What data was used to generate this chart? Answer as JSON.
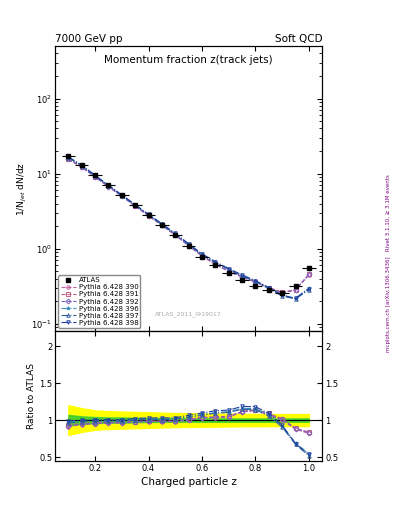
{
  "title_top_left": "7000 GeV pp",
  "title_top_right": "Soft QCD",
  "plot_title": "Momentum fraction z(track jets)",
  "ylabel_main": "1/N$_{jet}$ dN/dz",
  "ylabel_ratio": "Ratio to ATLAS",
  "xlabel": "Charged particle z",
  "right_label": "Rivet 3.1.10, ≥ 3.1M events",
  "right_label2": "mcplots.cern.ch [arXiv:1306.3436]",
  "watermark": "ATLAS_2011_I919017",
  "ylim_main": [
    0.08,
    500
  ],
  "ylim_ratio": [
    0.45,
    2.2
  ],
  "xlim": [
    0.05,
    1.05
  ],
  "z_data": [
    0.1,
    0.15,
    0.2,
    0.25,
    0.3,
    0.35,
    0.4,
    0.45,
    0.5,
    0.55,
    0.6,
    0.65,
    0.7,
    0.75,
    0.8,
    0.85,
    0.9,
    0.95,
    1.0
  ],
  "atlas_y": [
    17.0,
    13.0,
    9.5,
    7.0,
    5.2,
    3.8,
    2.8,
    2.1,
    1.55,
    1.1,
    0.78,
    0.6,
    0.48,
    0.38,
    0.32,
    0.28,
    0.26,
    0.32,
    0.55
  ],
  "atlas_yerr": [
    0.8,
    0.5,
    0.35,
    0.25,
    0.18,
    0.13,
    0.1,
    0.08,
    0.06,
    0.04,
    0.03,
    0.025,
    0.02,
    0.018,
    0.016,
    0.015,
    0.015,
    0.02,
    0.035
  ],
  "atlas_xerr": [
    0.025,
    0.025,
    0.025,
    0.025,
    0.025,
    0.025,
    0.025,
    0.025,
    0.025,
    0.025,
    0.025,
    0.025,
    0.025,
    0.025,
    0.025,
    0.025,
    0.025,
    0.025,
    0.025
  ],
  "series": [
    {
      "label": "Pythia 6.428 390",
      "color": "#c060a0",
      "marker": "o",
      "linestyle": "--",
      "y": [
        15.5,
        12.2,
        9.0,
        6.7,
        5.0,
        3.7,
        2.75,
        2.05,
        1.52,
        1.1,
        0.8,
        0.62,
        0.5,
        0.42,
        0.36,
        0.3,
        0.26,
        0.28,
        0.45
      ],
      "ratio": [
        0.91,
        0.94,
        0.95,
        0.96,
        0.96,
        0.97,
        0.98,
        0.98,
        0.98,
        1.0,
        1.03,
        1.03,
        1.04,
        1.11,
        1.13,
        1.07,
        1.0,
        0.875,
        0.82
      ]
    },
    {
      "label": "Pythia 6.428 391",
      "color": "#c06080",
      "marker": "s",
      "linestyle": "--",
      "y": [
        15.8,
        12.4,
        9.1,
        6.8,
        5.05,
        3.72,
        2.77,
        2.07,
        1.53,
        1.11,
        0.81,
        0.625,
        0.505,
        0.425,
        0.365,
        0.305,
        0.265,
        0.285,
        0.46
      ],
      "ratio": [
        0.93,
        0.955,
        0.958,
        0.971,
        0.971,
        0.979,
        0.989,
        0.986,
        0.987,
        1.009,
        1.038,
        1.042,
        1.052,
        1.118,
        1.141,
        1.089,
        1.019,
        0.891,
        0.836
      ]
    },
    {
      "label": "Pythia 6.428 392",
      "color": "#8060c0",
      "marker": "D",
      "linestyle": "--",
      "y": [
        15.6,
        12.3,
        9.05,
        6.75,
        5.02,
        3.71,
        2.76,
        2.06,
        1.525,
        1.105,
        0.805,
        0.622,
        0.502,
        0.422,
        0.362,
        0.302,
        0.262,
        0.283,
        0.456
      ],
      "ratio": [
        0.918,
        0.946,
        0.953,
        0.964,
        0.965,
        0.976,
        0.986,
        0.981,
        0.984,
        1.005,
        1.032,
        1.037,
        1.046,
        1.111,
        1.131,
        1.079,
        1.008,
        0.884,
        0.829
      ]
    },
    {
      "label": "Pythia 6.428 396",
      "color": "#4090c0",
      "marker": "*",
      "linestyle": "-.",
      "y": [
        16.5,
        12.8,
        9.4,
        6.95,
        5.15,
        3.82,
        2.84,
        2.12,
        1.58,
        1.15,
        0.84,
        0.66,
        0.535,
        0.44,
        0.37,
        0.3,
        0.24,
        0.22,
        0.3
      ],
      "ratio": [
        0.97,
        0.985,
        0.989,
        0.993,
        0.99,
        1.005,
        1.014,
        1.01,
        1.019,
        1.045,
        1.077,
        1.1,
        1.115,
        1.158,
        1.156,
        1.071,
        0.923,
        0.688,
        0.545
      ]
    },
    {
      "label": "Pythia 6.428 397",
      "color": "#3060a0",
      "marker": "^",
      "linestyle": "-.",
      "y": [
        16.3,
        12.7,
        9.3,
        6.9,
        5.12,
        3.8,
        2.82,
        2.11,
        1.57,
        1.14,
        0.83,
        0.655,
        0.53,
        0.435,
        0.365,
        0.295,
        0.235,
        0.215,
        0.285
      ],
      "ratio": [
        0.96,
        0.977,
        0.979,
        0.986,
        0.985,
        1.0,
        1.007,
        1.005,
        1.013,
        1.036,
        1.064,
        1.092,
        1.104,
        1.145,
        1.141,
        1.054,
        0.904,
        0.672,
        0.518
      ]
    },
    {
      "label": "Pythia 6.428 398",
      "color": "#2040a0",
      "marker": "v",
      "linestyle": "-.",
      "y": [
        16.8,
        13.0,
        9.55,
        7.05,
        5.22,
        3.88,
        2.88,
        2.16,
        1.6,
        1.17,
        0.855,
        0.675,
        0.545,
        0.45,
        0.378,
        0.305,
        0.242,
        0.218,
        0.295
      ],
      "ratio": [
        0.988,
        1.0,
        1.005,
        1.007,
        1.004,
        1.021,
        1.029,
        1.029,
        1.032,
        1.064,
        1.096,
        1.125,
        1.135,
        1.184,
        1.181,
        1.089,
        0.931,
        0.681,
        0.536
      ]
    }
  ],
  "green_band_lo": [
    0.93,
    0.95,
    0.96,
    0.965,
    0.965,
    0.97,
    0.975,
    0.975,
    0.978,
    0.978,
    0.978,
    0.978,
    0.978,
    0.978,
    0.978,
    0.978,
    0.978,
    0.978,
    0.978
  ],
  "green_band_hi": [
    1.07,
    1.05,
    1.04,
    1.035,
    1.035,
    1.03,
    1.025,
    1.025,
    1.022,
    1.022,
    1.022,
    1.022,
    1.022,
    1.022,
    1.022,
    1.022,
    1.022,
    1.022,
    1.022
  ],
  "yellow_band_lo": [
    0.8,
    0.84,
    0.87,
    0.88,
    0.885,
    0.89,
    0.895,
    0.9,
    0.905,
    0.907,
    0.91,
    0.912,
    0.914,
    0.916,
    0.917,
    0.918,
    0.919,
    0.919,
    0.919
  ],
  "yellow_band_hi": [
    1.2,
    1.16,
    1.13,
    1.12,
    1.115,
    1.11,
    1.105,
    1.1,
    1.095,
    1.093,
    1.09,
    1.088,
    1.086,
    1.084,
    1.083,
    1.082,
    1.081,
    1.081,
    1.081
  ]
}
